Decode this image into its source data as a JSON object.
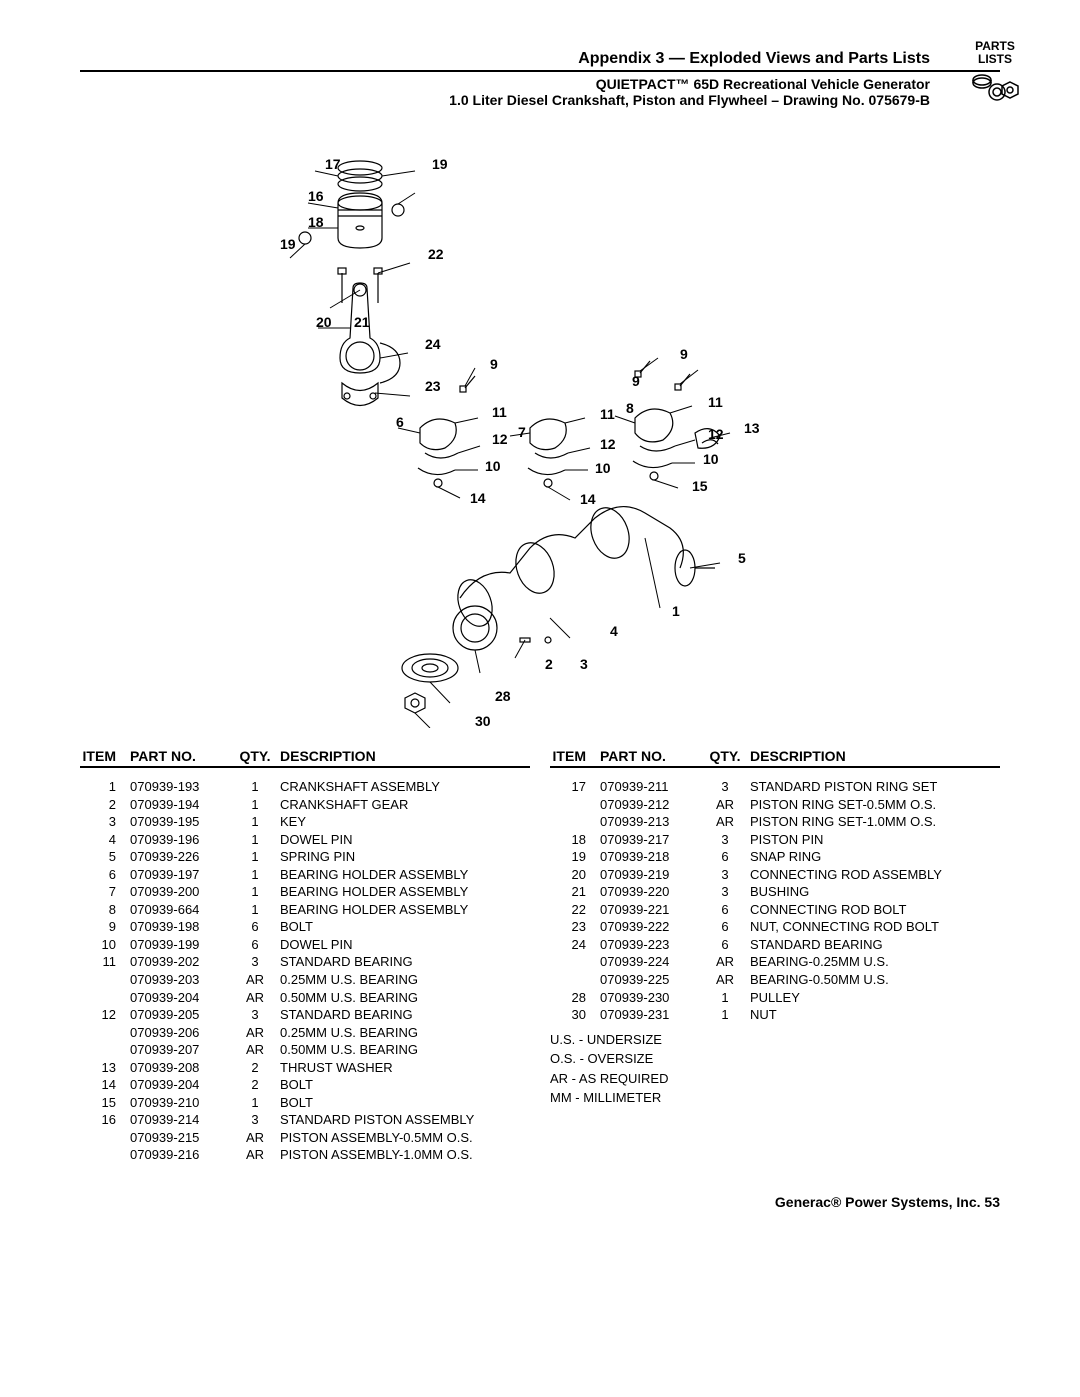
{
  "header": {
    "appendix_title": "Appendix 3 — Exploded Views and Parts Lists",
    "subtitle1": "QUIETPACT™ 65D Recreational Vehicle Generator",
    "subtitle2": "1.0 Liter Diesel Crankshaft, Piston and Flywheel – Drawing No. 075679-B",
    "badge_line1": "PARTS",
    "badge_line2": "LISTS"
  },
  "callouts": [
    "17",
    "19",
    "16",
    "18",
    "19",
    "22",
    "20",
    "21",
    "24",
    "23",
    "9",
    "9",
    "9",
    "6",
    "11",
    "8",
    "11",
    "12",
    "7",
    "11",
    "12",
    "13",
    "10",
    "12",
    "10",
    "14",
    "10",
    "15",
    "14",
    "5",
    "1",
    "4",
    "2",
    "3",
    "28",
    "30"
  ],
  "table_headers": {
    "item": "ITEM",
    "part": "PART NO.",
    "qty": "QTY.",
    "desc": "DESCRIPTION"
  },
  "left_rows": [
    {
      "item": "1",
      "part": "070939-193",
      "qty": "1",
      "desc": "CRANKSHAFT ASSEMBLY"
    },
    {
      "item": "2",
      "part": "070939-194",
      "qty": "1",
      "desc": "CRANKSHAFT GEAR"
    },
    {
      "item": "3",
      "part": "070939-195",
      "qty": "1",
      "desc": "KEY"
    },
    {
      "item": "4",
      "part": "070939-196",
      "qty": "1",
      "desc": "DOWEL PIN"
    },
    {
      "item": "5",
      "part": "070939-226",
      "qty": "1",
      "desc": "SPRING PIN"
    },
    {
      "item": "6",
      "part": "070939-197",
      "qty": "1",
      "desc": "BEARING HOLDER ASSEMBLY"
    },
    {
      "item": "7",
      "part": "070939-200",
      "qty": "1",
      "desc": "BEARING HOLDER ASSEMBLY"
    },
    {
      "item": "8",
      "part": "070939-664",
      "qty": "1",
      "desc": "BEARING HOLDER ASSEMBLY"
    },
    {
      "item": "9",
      "part": "070939-198",
      "qty": "6",
      "desc": "BOLT"
    },
    {
      "item": "10",
      "part": "070939-199",
      "qty": "6",
      "desc": "DOWEL PIN"
    },
    {
      "item": "11",
      "part": "070939-202",
      "qty": "3",
      "desc": "STANDARD BEARING"
    },
    {
      "item": "",
      "part": "070939-203",
      "qty": "AR",
      "desc": "0.25MM U.S. BEARING"
    },
    {
      "item": "",
      "part": "070939-204",
      "qty": "AR",
      "desc": "0.50MM U.S. BEARING"
    },
    {
      "item": "12",
      "part": "070939-205",
      "qty": "3",
      "desc": "STANDARD BEARING"
    },
    {
      "item": "",
      "part": "070939-206",
      "qty": "AR",
      "desc": "0.25MM U.S. BEARING"
    },
    {
      "item": "",
      "part": "070939-207",
      "qty": "AR",
      "desc": "0.50MM U.S. BEARING"
    },
    {
      "item": "13",
      "part": "070939-208",
      "qty": "2",
      "desc": "THRUST WASHER"
    },
    {
      "item": "14",
      "part": "070939-204",
      "qty": "2",
      "desc": "BOLT"
    },
    {
      "item": "15",
      "part": "070939-210",
      "qty": "1",
      "desc": "BOLT"
    },
    {
      "item": "16",
      "part": "070939-214",
      "qty": "3",
      "desc": "STANDARD PISTON ASSEMBLY"
    },
    {
      "item": "",
      "part": "070939-215",
      "qty": "AR",
      "desc": "PISTON ASSEMBLY-0.5MM O.S."
    },
    {
      "item": "",
      "part": "070939-216",
      "qty": "AR",
      "desc": "PISTON ASSEMBLY-1.0MM O.S."
    }
  ],
  "right_rows": [
    {
      "item": "17",
      "part": "070939-211",
      "qty": "3",
      "desc": "STANDARD PISTON RING SET"
    },
    {
      "item": "",
      "part": "070939-212",
      "qty": "AR",
      "desc": "PISTON RING SET-0.5MM O.S."
    },
    {
      "item": "",
      "part": "070939-213",
      "qty": "AR",
      "desc": "PISTON RING SET-1.0MM O.S."
    },
    {
      "item": "18",
      "part": "070939-217",
      "qty": "3",
      "desc": "PISTON PIN"
    },
    {
      "item": "19",
      "part": "070939-218",
      "qty": "6",
      "desc": "SNAP RING"
    },
    {
      "item": "20",
      "part": "070939-219",
      "qty": "3",
      "desc": "CONNECTING ROD ASSEMBLY"
    },
    {
      "item": "21",
      "part": "070939-220",
      "qty": "3",
      "desc": "BUSHING"
    },
    {
      "item": "22",
      "part": "070939-221",
      "qty": "6",
      "desc": "CONNECTING ROD BOLT"
    },
    {
      "item": "23",
      "part": "070939-222",
      "qty": "6",
      "desc": "NUT, CONNECTING ROD BOLT"
    },
    {
      "item": "24",
      "part": "070939-223",
      "qty": "6",
      "desc": "STANDARD BEARING"
    },
    {
      "item": "",
      "part": "070939-224",
      "qty": "AR",
      "desc": "BEARING-0.25MM U.S."
    },
    {
      "item": "",
      "part": "070939-225",
      "qty": "AR",
      "desc": "BEARING-0.50MM U.S."
    },
    {
      "item": "28",
      "part": "070939-230",
      "qty": "1",
      "desc": "PULLEY"
    },
    {
      "item": "30",
      "part": "070939-231",
      "qty": "1",
      "desc": "NUT"
    }
  ],
  "legend": [
    "U.S. - UNDERSIZE",
    "O.S. - OVERSIZE",
    "AR - AS REQUIRED",
    "MM - MILLIMETER"
  ],
  "footer": "Generac® Power Systems, Inc.   53"
}
